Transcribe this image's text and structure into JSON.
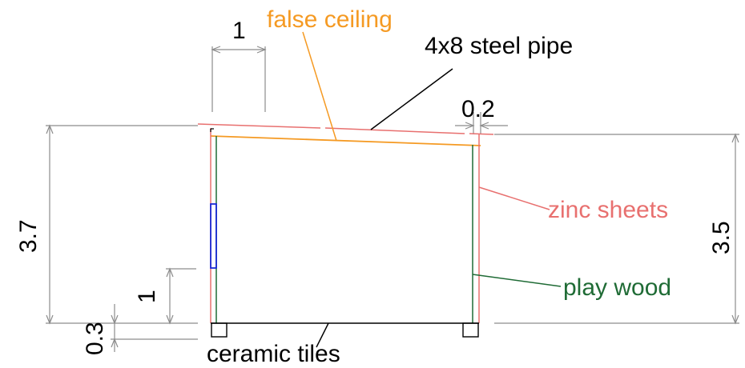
{
  "labels": {
    "dim_top": "1",
    "dim_right_gap": "0.2",
    "dim_left_height": "3.7",
    "dim_right_height": "3.5",
    "dim_window_sill": "1",
    "dim_base": "0.3",
    "false_ceiling": "false ceiling",
    "steel_pipe": "4x8 steel pipe",
    "zinc_sheets": "zinc sheets",
    "play_wood": "play wood",
    "ceramic_tiles": "ceramic tiles"
  },
  "colors": {
    "dimension": "#8c8c8c",
    "false_ceiling": "#f59a23",
    "zinc_sheets": "#e8706f",
    "play_wood": "#1f6b35",
    "steel_pipe": "#000000",
    "window": "#1a2ad6",
    "ceramic_tiles": "#000000"
  }
}
